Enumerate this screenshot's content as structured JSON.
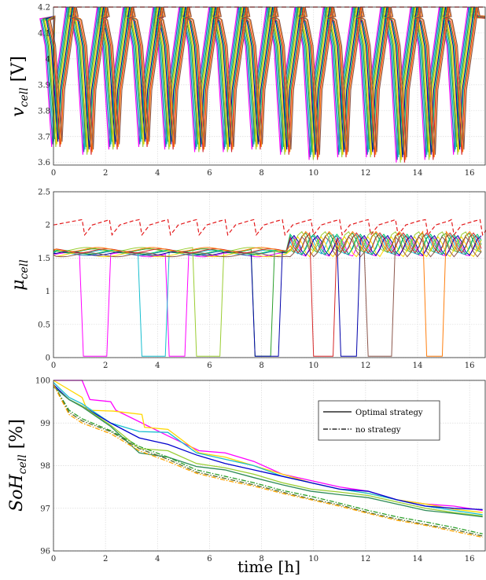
{
  "chart_data": [
    {
      "type": "line",
      "id": "vcell",
      "ylabel": {
        "main": "v",
        "sub": "cell",
        "unit": " [V]"
      },
      "xlim": [
        0,
        16.6
      ],
      "ylim": [
        3.59,
        4.2
      ],
      "xticks": [
        0,
        2,
        4,
        6,
        8,
        10,
        12,
        14,
        16
      ],
      "yticks": [
        3.6,
        3.7,
        3.8,
        3.9,
        4.0,
        4.1,
        4.2
      ],
      "ytick_labels": [
        "3.6",
        "3.7",
        "3.8",
        "3.9",
        "4",
        "4.1",
        "4.2"
      ],
      "grid": true,
      "limit_line": {
        "y": 4.2,
        "style": "dashed",
        "color": "#e41a1c"
      },
      "cycle_minima_times": [
        0.15,
        1.35,
        2.35,
        3.5,
        4.5,
        5.65,
        6.75,
        7.85,
        8.95,
        10.05,
        11.15,
        12.25,
        13.4,
        14.5,
        15.6
      ],
      "cycle_minima_values": [
        3.66,
        3.63,
        3.65,
        3.66,
        3.65,
        3.64,
        3.64,
        3.65,
        3.63,
        3.61,
        3.62,
        3.62,
        3.6,
        3.61,
        3.63
      ],
      "plateau_level": 4.165,
      "series_colors": [
        "#ff00ff",
        "#1f77b4",
        "#17becf",
        "#2ca02c",
        "#9acd32",
        "#ffd700",
        "#0000aa",
        "#00cc66",
        "#d62728",
        "#ff7f0e",
        "#8c564b"
      ]
    },
    {
      "type": "line",
      "id": "mucell",
      "ylabel": {
        "main": "μ",
        "sub": "cell",
        "unit": ""
      },
      "xlim": [
        0,
        16.6
      ],
      "ylim": [
        0,
        2.5
      ],
      "xticks": [
        0,
        2,
        4,
        6,
        8,
        10,
        12,
        14,
        16
      ],
      "yticks": [
        0,
        0.5,
        1,
        1.5,
        2,
        2.5
      ],
      "ytick_labels": [
        "0",
        "0.5",
        "1",
        "1.5",
        "2",
        "2.5"
      ],
      "grid": true,
      "limit_line": {
        "level_values": [
          2.0,
          2.1
        ],
        "style": "dashed",
        "color": "#e41a1c"
      },
      "baseline_level": 1.55,
      "drop_times": [
        1.1,
        2.15,
        3.3,
        4.4,
        5.5,
        6.6,
        7.7,
        8.8,
        9.9,
        11.0,
        12.1,
        13.15,
        14.3,
        15.3,
        16.4
      ],
      "series_colors": [
        "#ff00ff",
        "#1f77b4",
        "#17becf",
        "#2ca02c",
        "#9acd32",
        "#ffd700",
        "#0000aa",
        "#00cc66",
        "#d62728",
        "#ff7f0e",
        "#8c564b"
      ]
    },
    {
      "type": "line",
      "id": "sohcell",
      "ylabel": {
        "main": "SoH",
        "sub": "cell",
        "unit": " [%]"
      },
      "xlabel": "time [h]",
      "xlim": [
        0,
        16.6
      ],
      "ylim": [
        96,
        100
      ],
      "xticks": [
        0,
        2,
        4,
        6,
        8,
        10,
        12,
        14,
        16
      ],
      "yticks": [
        96,
        97,
        98,
        99,
        100
      ],
      "ytick_labels": [
        "96",
        "97",
        "98",
        "99",
        "100"
      ],
      "grid": true,
      "legend": {
        "placement": "top-right",
        "entries": [
          {
            "label": "Optimal strategy",
            "style": "solid"
          },
          {
            "label": "no strategy",
            "style": "dashdot"
          }
        ]
      },
      "series": [
        {
          "style": "solid",
          "color": "#ff00ff",
          "x": [
            0,
            1.1,
            1.4,
            2.2,
            2.4,
            4.4,
            5.6,
            6.6,
            7.7,
            8.8,
            9.9,
            11.0,
            12.1,
            13.2,
            14.3,
            15.4,
            16.5
          ],
          "y": [
            100,
            100,
            99.55,
            99.5,
            99.3,
            98.7,
            98.35,
            98.3,
            98.1,
            97.8,
            97.65,
            97.5,
            97.4,
            97.2,
            97.1,
            97.05,
            96.95
          ]
        },
        {
          "style": "solid",
          "color": "#ffd700",
          "x": [
            0,
            1.1,
            1.3,
            2.3,
            3.4,
            3.5,
            4.4,
            5.6,
            6.6,
            7.7,
            8.8,
            9.9,
            11.0,
            12.1,
            13.2,
            14.3,
            15.4,
            16.5
          ],
          "y": [
            100,
            99.6,
            99.3,
            99.28,
            99.2,
            98.9,
            98.85,
            98.3,
            98.2,
            98.0,
            97.8,
            97.6,
            97.45,
            97.35,
            97.2,
            97.1,
            96.98,
            96.9
          ]
        },
        {
          "style": "solid",
          "color": "#17becf",
          "x": [
            0,
            0.6,
            1.1,
            2.2,
            3.3,
            4.4,
            5.5,
            6.6,
            7.7,
            8.8,
            9.9,
            11.0,
            12.1,
            13.2,
            14.3,
            15.4,
            16.5
          ],
          "y": [
            99.95,
            99.6,
            99.45,
            99.0,
            98.8,
            98.78,
            98.3,
            98.15,
            98.0,
            97.75,
            97.6,
            97.45,
            97.35,
            97.2,
            97.05,
            96.95,
            96.85
          ]
        },
        {
          "style": "solid",
          "color": "#0000cd",
          "x": [
            0,
            0.6,
            1.1,
            2.2,
            3.3,
            4.4,
            5.5,
            6.6,
            7.7,
            8.8,
            9.9,
            11.0,
            12.1,
            13.2,
            14.3,
            15.4,
            16.5
          ],
          "y": [
            99.9,
            99.55,
            99.4,
            99.0,
            98.65,
            98.5,
            98.25,
            98.05,
            97.9,
            97.75,
            97.6,
            97.45,
            97.4,
            97.2,
            97.05,
            97.0,
            96.97
          ]
        },
        {
          "style": "solid",
          "color": "#9acd32",
          "x": [
            0,
            0.6,
            1.1,
            2.2,
            3.3,
            4.4,
            5.5,
            6.6,
            7.7,
            8.8,
            9.9,
            11.0,
            12.1,
            13.2,
            14.3,
            15.4,
            16.5
          ],
          "y": [
            99.85,
            99.55,
            99.4,
            98.95,
            98.4,
            98.35,
            98.05,
            97.95,
            97.8,
            97.6,
            97.45,
            97.38,
            97.3,
            97.15,
            97.0,
            96.9,
            96.82
          ]
        },
        {
          "style": "solid",
          "color": "#2e8b57",
          "x": [
            0,
            0.6,
            1.1,
            2.2,
            3.3,
            4.4,
            5.5,
            6.6,
            7.7,
            8.8,
            9.9,
            11.0,
            12.1,
            13.2,
            14.3,
            15.4,
            16.5
          ],
          "y": [
            99.85,
            99.55,
            99.38,
            98.92,
            98.3,
            98.2,
            97.98,
            97.9,
            97.72,
            97.55,
            97.4,
            97.32,
            97.25,
            97.1,
            96.95,
            96.88,
            96.8
          ]
        },
        {
          "style": "dashdot",
          "color": "#2ca02c",
          "x": [
            0,
            0.6,
            1.1,
            2.2,
            3.3,
            4.4,
            5.5,
            6.6,
            7.7,
            8.8,
            9.9,
            11.0,
            12.1,
            13.2,
            14.3,
            15.4,
            16.5
          ],
          "y": [
            99.9,
            99.3,
            99.1,
            98.82,
            98.45,
            98.2,
            97.9,
            97.75,
            97.6,
            97.42,
            97.28,
            97.12,
            96.95,
            96.8,
            96.68,
            96.55,
            96.4
          ]
        },
        {
          "style": "dashdot",
          "color": "#556b2f",
          "x": [
            0,
            0.6,
            1.1,
            2.2,
            3.3,
            4.4,
            5.5,
            6.6,
            7.7,
            8.8,
            9.9,
            11.0,
            12.1,
            13.2,
            14.3,
            15.4,
            16.5
          ],
          "y": [
            99.9,
            99.25,
            99.05,
            98.8,
            98.4,
            98.15,
            97.85,
            97.7,
            97.55,
            97.38,
            97.22,
            97.08,
            96.9,
            96.75,
            96.62,
            96.5,
            96.35
          ]
        },
        {
          "style": "dashdot",
          "color": "#ffa500",
          "x": [
            0,
            0.6,
            1.1,
            2.2,
            3.3,
            4.4,
            5.5,
            6.6,
            7.7,
            8.8,
            9.9,
            11.0,
            12.1,
            13.2,
            14.3,
            15.4,
            16.5
          ],
          "y": [
            99.9,
            99.2,
            99.0,
            98.75,
            98.35,
            98.1,
            97.82,
            97.66,
            97.52,
            97.35,
            97.2,
            97.05,
            96.88,
            96.72,
            96.6,
            96.46,
            96.32
          ]
        }
      ]
    }
  ]
}
